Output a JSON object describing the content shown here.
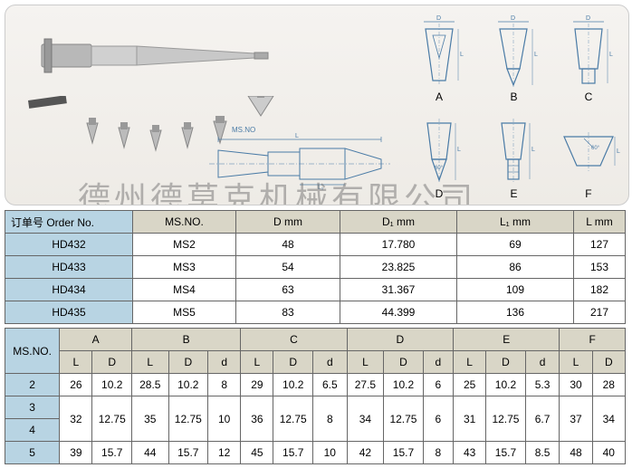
{
  "watermark": "德州德莫克机械有限公司",
  "diagram_labels": [
    "A",
    "B",
    "C",
    "D",
    "E",
    "F"
  ],
  "tech_label": "MS.NO",
  "table1": {
    "headers": [
      "订单号 Order No.",
      "MS.NO.",
      "D mm",
      "D₁ mm",
      "L₁ mm",
      "L mm"
    ],
    "rows": [
      [
        "HD432",
        "MS2",
        "48",
        "17.780",
        "69",
        "127"
      ],
      [
        "HD433",
        "MS3",
        "54",
        "23.825",
        "86",
        "153"
      ],
      [
        "HD434",
        "MS4",
        "63",
        "31.367",
        "109",
        "182"
      ],
      [
        "HD435",
        "MS5",
        "83",
        "44.399",
        "136",
        "217"
      ]
    ]
  },
  "table2": {
    "corner": "MS.NO.",
    "groups": [
      "A",
      "B",
      "C",
      "D",
      "E",
      "F"
    ],
    "sub_a": [
      "L",
      "D"
    ],
    "sub_b": [
      "L",
      "D",
      "d"
    ],
    "sub_c": [
      "L",
      "D",
      "d"
    ],
    "sub_d": [
      "L",
      "D",
      "d"
    ],
    "sub_e": [
      "L",
      "D",
      "d"
    ],
    "sub_f": [
      "L",
      "D"
    ],
    "rows": [
      {
        "k": "2",
        "a": [
          "26",
          "10.2"
        ],
        "b": [
          "28.5",
          "10.2",
          "8"
        ],
        "c": [
          "29",
          "10.2",
          "6.5"
        ],
        "d": [
          "27.5",
          "10.2",
          "6"
        ],
        "e": [
          "25",
          "10.2",
          "5.3"
        ],
        "f": [
          "30",
          "28"
        ],
        "rs": 1
      },
      {
        "k": "3",
        "a": [
          "32",
          "12.75"
        ],
        "b": [
          "35",
          "12.75",
          "10"
        ],
        "c": [
          "36",
          "12.75",
          "8"
        ],
        "d": [
          "34",
          "12.75",
          "6"
        ],
        "e": [
          "31",
          "12.75",
          "6.7"
        ],
        "f": [
          "37",
          "34"
        ],
        "rs": 2
      },
      {
        "k": "4"
      },
      {
        "k": "5",
        "a": [
          "39",
          "15.7"
        ],
        "b": [
          "44",
          "15.7",
          "12"
        ],
        "c": [
          "45",
          "15.7",
          "10"
        ],
        "d": [
          "42",
          "15.7",
          "8"
        ],
        "e": [
          "43",
          "15.7",
          "8.5"
        ],
        "f": [
          "48",
          "40"
        ],
        "rs": 1
      }
    ]
  },
  "colors": {
    "header_bg": "#d9d6c7",
    "blue_bg": "#b8d4e3",
    "border": "#666666",
    "page_bg": "#ffffff",
    "img_bg_top": "#f5f3f0",
    "img_bg_bot": "#eeebe6"
  }
}
